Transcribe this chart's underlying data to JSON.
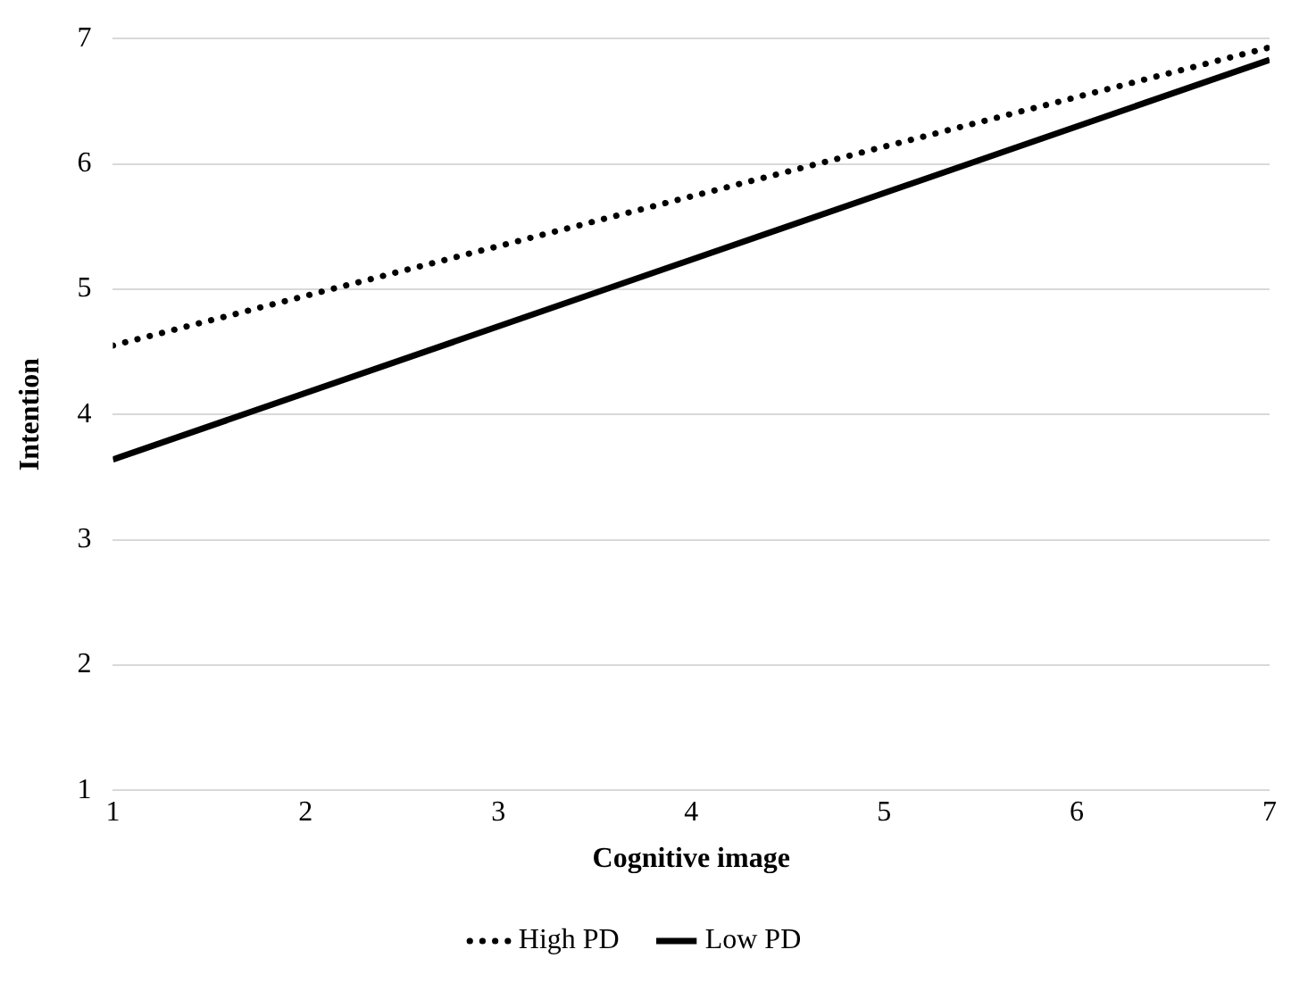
{
  "chart_data": {
    "type": "line",
    "xlabel": "Cognitive image",
    "ylabel": "Intention",
    "x": [
      1,
      7
    ],
    "xlim": [
      1,
      7
    ],
    "xticks": [
      1,
      2,
      3,
      4,
      5,
      6,
      7
    ],
    "ylim": [
      1,
      7
    ],
    "yticks": [
      1,
      2,
      3,
      4,
      5,
      6,
      7
    ],
    "grid": "y",
    "legend": "bottom",
    "marker": "none",
    "series": [
      {
        "name": "High PD",
        "color": "#000000",
        "values": [
          4.55,
          6.93
        ],
        "line_style": "dotted"
      },
      {
        "name": "Low PD",
        "color": "#000000",
        "values": [
          3.64,
          6.83
        ],
        "line_style": "solid"
      }
    ]
  }
}
